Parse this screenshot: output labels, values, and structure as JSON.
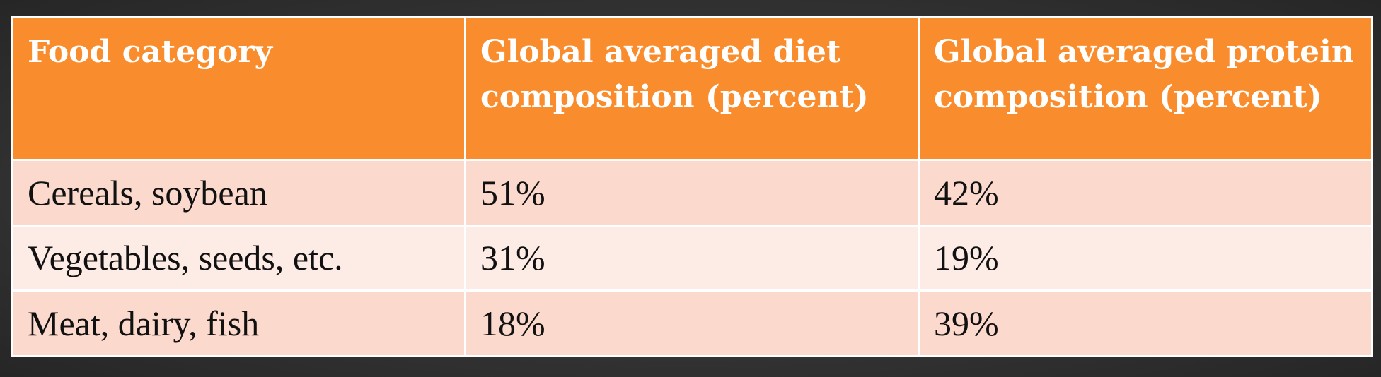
{
  "table": {
    "header": [
      "Food category",
      "Global averaged diet composition (percent)",
      "Global averaged protein composition (percent)"
    ],
    "rows": [
      [
        "Cereals, soybean",
        "51%",
        "42%"
      ],
      [
        "Vegetables, seeds, etc.",
        "31%",
        "19%"
      ],
      [
        "Meat, dairy, fish",
        "18%",
        "39%"
      ]
    ]
  }
}
